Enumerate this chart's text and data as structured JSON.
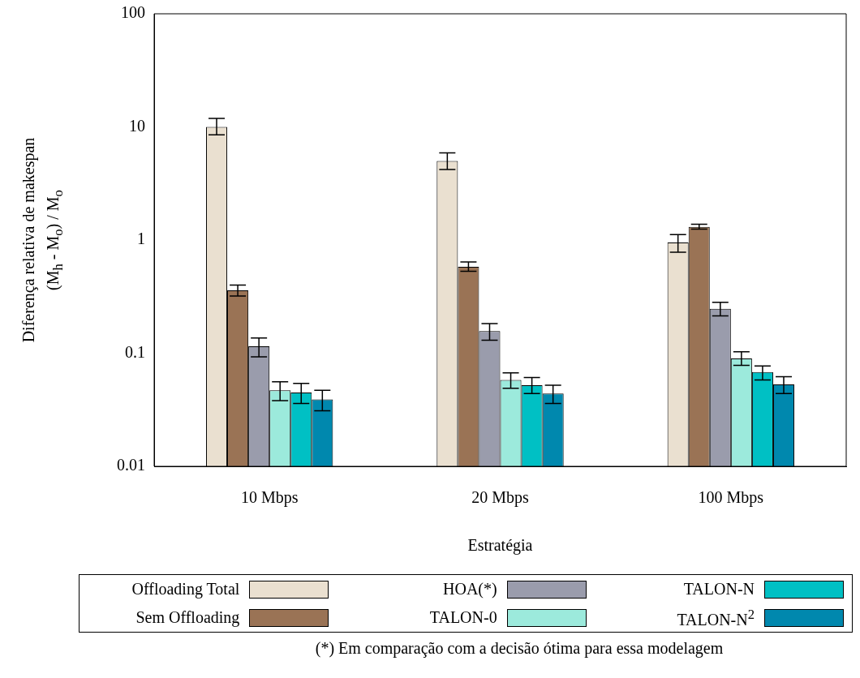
{
  "chart_data": {
    "type": "bar",
    "xlabel": "Estratégia",
    "ylabel": "Diferença relativa de makespan\n(M$_{h}$ - M$_{o}$)  /  M$_{o}$",
    "categories": [
      "10 Mbps",
      "20 Mbps",
      "100 Mbps"
    ],
    "log": "y",
    "ylim": [
      0.01,
      100
    ],
    "yticks": [
      0.01,
      0.1,
      1,
      10,
      100
    ],
    "legend": "bottom",
    "series": [
      {
        "name": "Offloading Total",
        "color": "#eae0d0",
        "values": [
          10,
          5.0,
          0.95
        ],
        "errors": [
          [
            8.5,
            11.9
          ],
          [
            4.2,
            5.9
          ],
          [
            0.78,
            1.12
          ]
        ]
      },
      {
        "name": "Sem Offloading",
        "color": "#9a7355",
        "values": [
          0.36,
          0.58,
          1.31
        ],
        "errors": [
          [
            0.32,
            0.4
          ],
          [
            0.53,
            0.64
          ],
          [
            1.25,
            1.38
          ]
        ]
      },
      {
        "name": "HOA(*)",
        "color": "#9a9cac",
        "values": [
          0.115,
          0.157,
          0.247
        ],
        "errors": [
          [
            0.093,
            0.136
          ],
          [
            0.13,
            0.183
          ],
          [
            0.214,
            0.282
          ]
        ]
      },
      {
        "name": "TALON-0",
        "color": "#9ceadc",
        "values": [
          0.047,
          0.058,
          0.09
        ],
        "errors": [
          [
            0.038,
            0.056
          ],
          [
            0.049,
            0.067
          ],
          [
            0.078,
            0.103
          ]
        ]
      },
      {
        "name": "TALON-N",
        "color": "#00c0c4",
        "values": [
          0.045,
          0.052,
          0.068
        ],
        "errors": [
          [
            0.036,
            0.054
          ],
          [
            0.044,
            0.061
          ],
          [
            0.058,
            0.077
          ]
        ]
      },
      {
        "name": "TALON-N$^{2}$",
        "color": "#0088ae",
        "values": [
          0.039,
          0.044,
          0.053
        ],
        "errors": [
          [
            0.031,
            0.047
          ],
          [
            0.036,
            0.052
          ],
          [
            0.044,
            0.062
          ]
        ]
      }
    ],
    "annotations": [
      "(*) Em comparação com a decisão ótima para essa modelagem"
    ]
  }
}
